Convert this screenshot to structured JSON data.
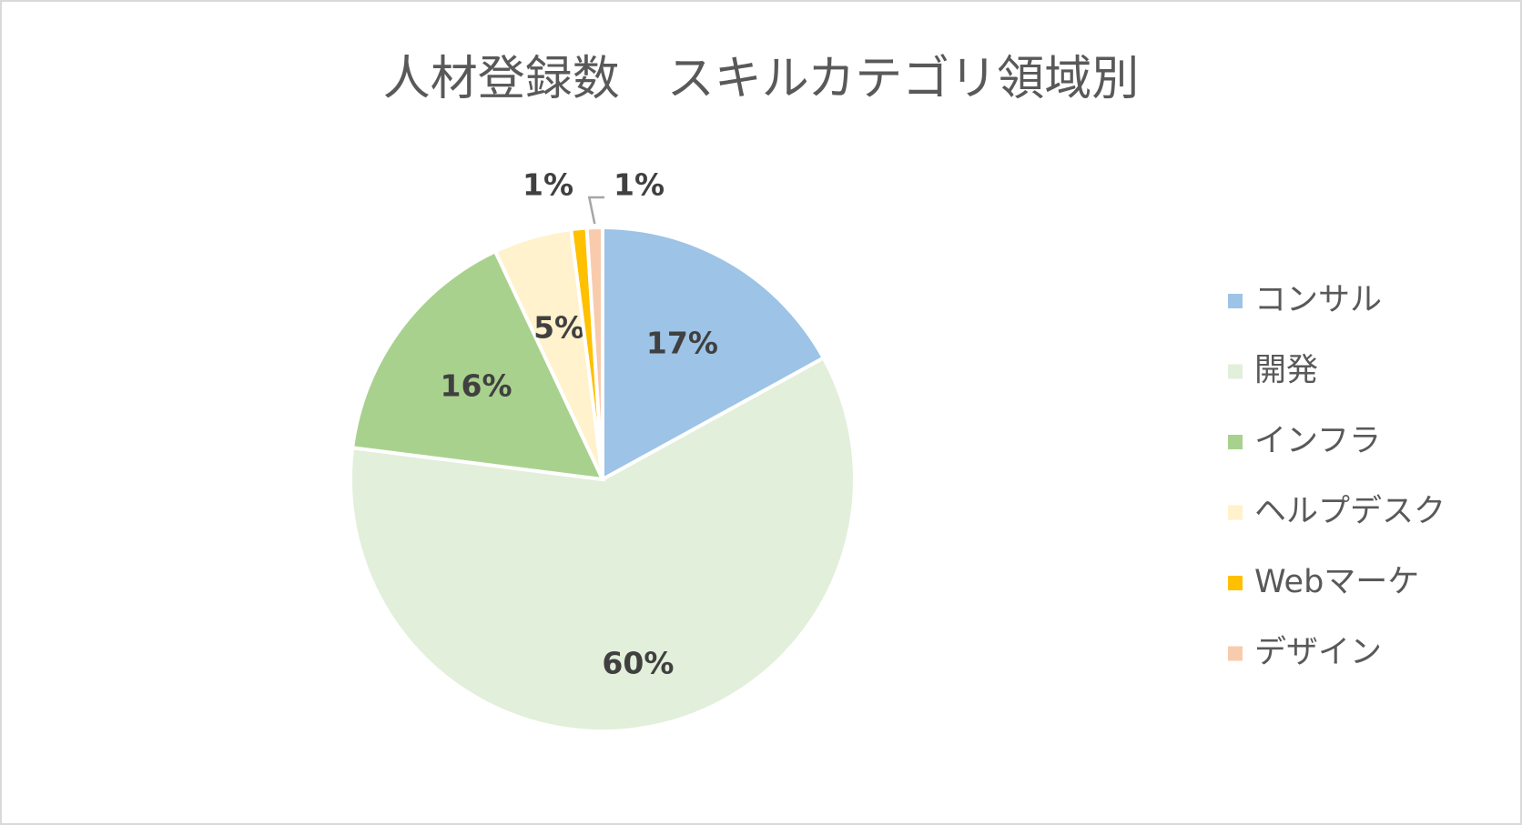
{
  "chart_data": {
    "type": "pie",
    "title": "人材登録数　スキルカテゴリ領域別",
    "categories": [
      "コンサル",
      "開発",
      "インフラ",
      "ヘルプデスク",
      "Webマーケ",
      "デザイン"
    ],
    "values": [
      17,
      60,
      16,
      5,
      1,
      1
    ],
    "value_labels": [
      "17%",
      "60%",
      "16%",
      "5%",
      "1%",
      "1%"
    ],
    "colors": [
      "#9dc3e6",
      "#e2efda",
      "#a9d18e",
      "#fff2cc",
      "#ffc000",
      "#f8cbad"
    ],
    "legend": "right"
  }
}
